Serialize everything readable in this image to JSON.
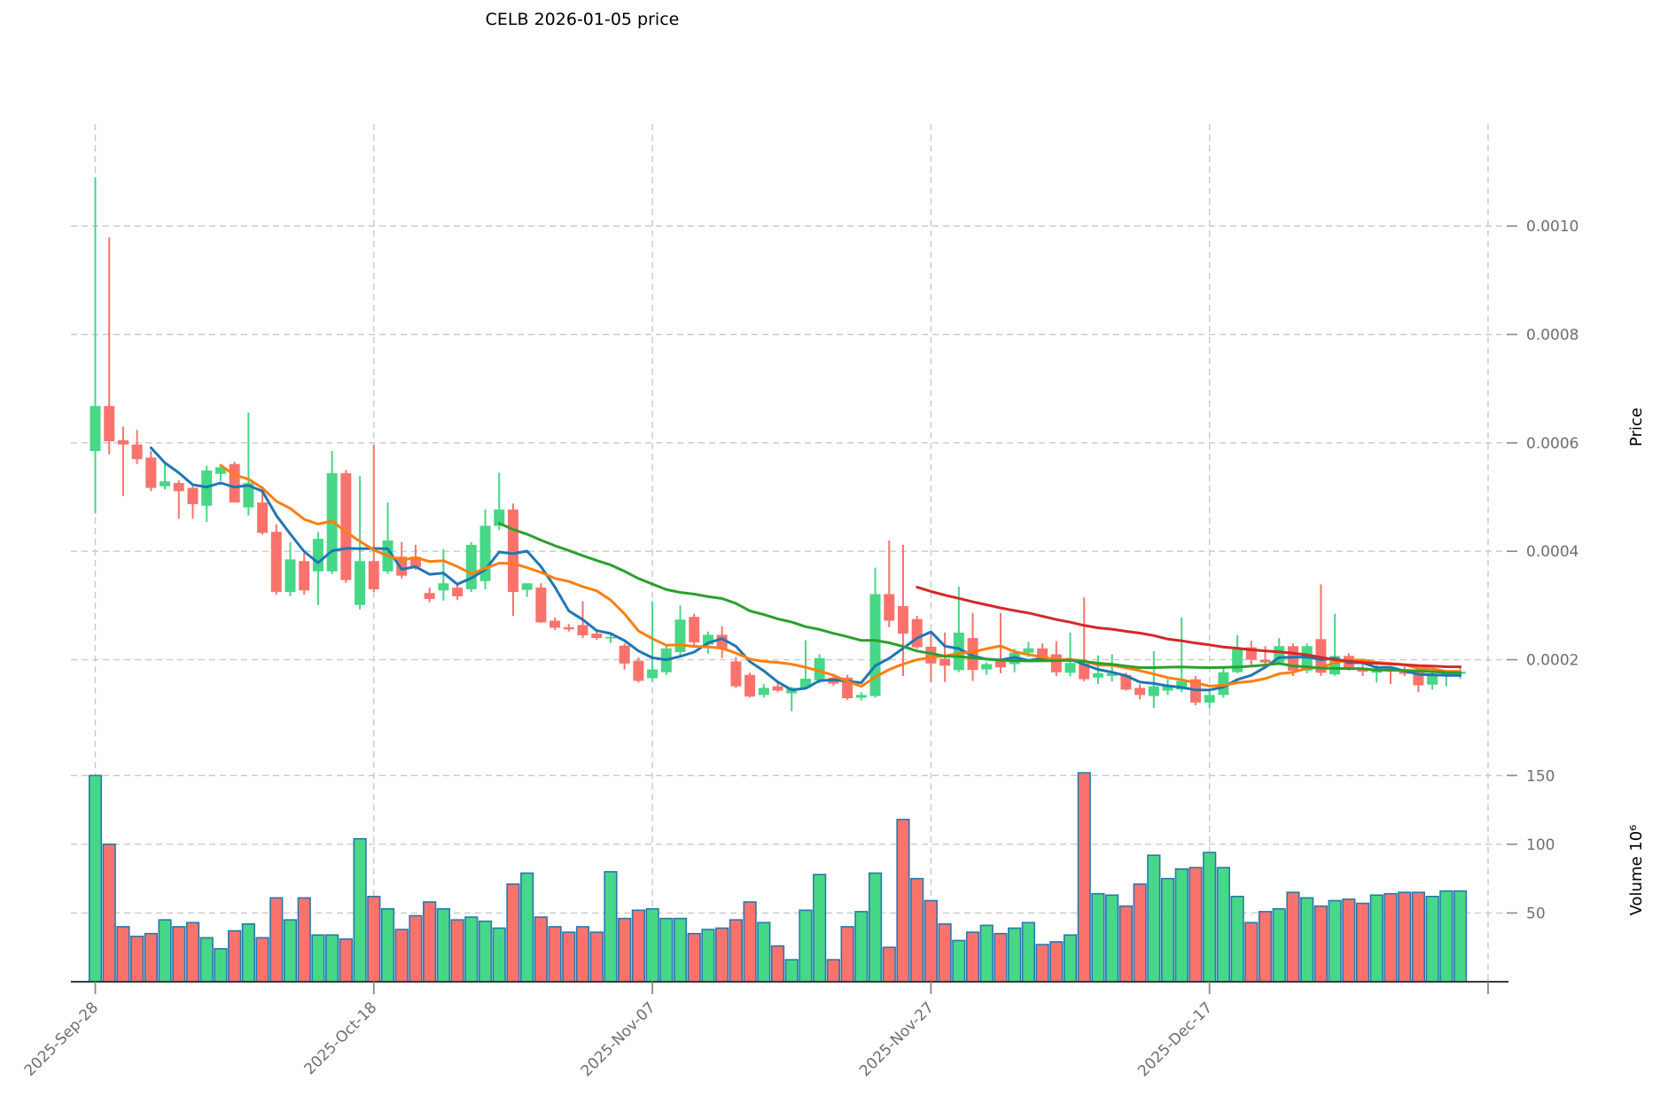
{
  "chart_data": {
    "type": "candlestick_with_volume",
    "title": "CELB  2026-01-05  price",
    "price_axis_label": "Price",
    "volume_axis_label": "Volume  10⁶",
    "legend_position": "none",
    "grid": "dashed",
    "x_ticks": [
      {
        "index": 0,
        "label": "2025-Sep-28"
      },
      {
        "index": 20,
        "label": "2025-Oct-18"
      },
      {
        "index": 40,
        "label": "2025-Nov-07"
      },
      {
        "index": 60,
        "label": "2025-Nov-27"
      },
      {
        "index": 80,
        "label": "2025-Dec-17"
      },
      {
        "index": 100,
        "label": ""
      }
    ],
    "price_ticks": [
      {
        "value": 0.0002,
        "label": "0.0002"
      },
      {
        "value": 0.0004,
        "label": "0.0004"
      },
      {
        "value": 0.0006,
        "label": "0.0006"
      },
      {
        "value": 0.0008,
        "label": "0.0008"
      },
      {
        "value": 0.001,
        "label": "0.0010"
      }
    ],
    "volume_ticks": [
      {
        "value": 50,
        "label": "50"
      },
      {
        "value": 100,
        "label": "100"
      },
      {
        "value": 150,
        "label": "150"
      }
    ],
    "price_range": [
      8e-05,
      0.00118
    ],
    "volume_range": [
      0,
      165
    ],
    "moving_averages": [
      {
        "name": "sma-5",
        "period": 5,
        "color": "#1f77b4"
      },
      {
        "name": "sma-10",
        "period": 10,
        "color": "#ff7f0e"
      },
      {
        "name": "sma-30",
        "period": 30,
        "color": "#2ca02c"
      },
      {
        "name": "sma-60",
        "period": 60,
        "color": "#d62728"
      }
    ],
    "colors": {
      "up": "#46d787",
      "down": "#f9736c",
      "volume_edge": "#2878af",
      "grid": "#c9c9c9",
      "tick_text": "#6e6e6e",
      "axis_spine": "#3a3a3a"
    },
    "ohlc": [
      [
        0.000585,
        0.00109,
        0.00047,
        0.000668
      ],
      [
        0.000668,
        0.000979,
        0.000579,
        0.000603
      ],
      [
        0.000605,
        0.00063,
        0.000502,
        0.000597
      ],
      [
        0.000597,
        0.000624,
        0.000561,
        0.00057
      ],
      [
        0.000573,
        0.000585,
        0.000511,
        0.000517
      ],
      [
        0.00052,
        0.000564,
        0.000514,
        0.000529
      ],
      [
        0.000526,
        0.000531,
        0.00046,
        0.000511
      ],
      [
        0.000517,
        0.00052,
        0.00046,
        0.000487
      ],
      [
        0.000484,
        0.000558,
        0.000454,
        0.000549
      ],
      [
        0.000543,
        0.000558,
        0.00053,
        0.000555
      ],
      [
        0.000561,
        0.000565,
        0.00049,
        0.00049
      ],
      [
        0.000481,
        0.000656,
        0.000466,
        0.000526
      ],
      [
        0.00049,
        0.00052,
        0.000431,
        0.000434
      ],
      [
        0.000436,
        0.00045,
        0.00032,
        0.000325
      ],
      [
        0.000325,
        0.000417,
        0.000317,
        0.000385
      ],
      [
        0.000382,
        0.000396,
        0.00032,
        0.000328
      ],
      [
        0.000363,
        0.000436,
        0.000301,
        0.000423
      ],
      [
        0.000363,
        0.000585,
        0.000358,
        0.000544
      ],
      [
        0.000544,
        0.00055,
        0.000342,
        0.000347
      ],
      [
        0.000301,
        0.000539,
        0.000293,
        0.000382
      ],
      [
        0.000382,
        0.000596,
        0.000325,
        0.00033
      ],
      [
        0.000363,
        0.00049,
        0.000358,
        0.00042
      ],
      [
        0.00039,
        0.000417,
        0.00035,
        0.000355
      ],
      [
        0.00039,
        0.000412,
        0.000366,
        0.000371
      ],
      [
        0.000323,
        0.000333,
        0.000306,
        0.000312
      ],
      [
        0.000328,
        0.000404,
        0.000309,
        0.000341
      ],
      [
        0.000333,
        0.00034,
        0.00031,
        0.000317
      ],
      [
        0.00033,
        0.000417,
        0.000325,
        0.000412
      ],
      [
        0.000345,
        0.000477,
        0.00033,
        0.000447
      ],
      [
        0.000447,
        0.000545,
        0.000439,
        0.000477
      ],
      [
        0.000477,
        0.000488,
        0.000281,
        0.000325
      ],
      [
        0.000329,
        0.000341,
        0.000316,
        0.000341
      ],
      [
        0.000333,
        0.000341,
        0.000268,
        0.000269
      ],
      [
        0.000272,
        0.000278,
        0.000255,
        0.000259
      ],
      [
        0.00026,
        0.000266,
        0.000252,
        0.000256
      ],
      [
        0.000264,
        0.000308,
        0.00024,
        0.000245
      ],
      [
        0.000248,
        0.000255,
        0.000237,
        0.00024
      ],
      [
        0.00024,
        0.000246,
        0.000231,
        0.000242
      ],
      [
        0.000226,
        0.00023,
        0.000182,
        0.000193
      ],
      [
        0.000198,
        0.000204,
        0.000158,
        0.000161
      ],
      [
        0.000166,
        0.000308,
        0.00016,
        0.000182
      ],
      [
        0.000177,
        0.000226,
        0.000172,
        0.000221
      ],
      [
        0.000214,
        0.0003,
        0.000208,
        0.000274
      ],
      [
        0.000279,
        0.000285,
        0.000225,
        0.000232
      ],
      [
        0.000228,
        0.000252,
        0.000211,
        0.000246
      ],
      [
        0.000246,
        0.000262,
        0.000203,
        0.000221
      ],
      [
        0.000197,
        0.000205,
        0.000148,
        0.000151
      ],
      [
        0.000172,
        0.000176,
        0.00013,
        0.000132
      ],
      [
        0.000135,
        0.000155,
        0.00013,
        0.000148
      ],
      [
        0.000151,
        0.000156,
        0.00014,
        0.000143
      ],
      [
        0.000138,
        0.00015,
        0.000105,
        0.000148
      ],
      [
        0.000148,
        0.000236,
        0.000145,
        0.000165
      ],
      [
        0.000162,
        0.00021,
        0.000157,
        0.000203
      ],
      [
        0.000167,
        0.000172,
        0.000152,
        0.000156
      ],
      [
        0.000167,
        0.000172,
        0.000126,
        0.000129
      ],
      [
        0.00013,
        0.00014,
        0.000125,
        0.000135
      ],
      [
        0.000133,
        0.00037,
        0.00013,
        0.000321
      ],
      [
        0.000321,
        0.00042,
        0.00026,
        0.000272
      ],
      [
        0.000299,
        0.000412,
        0.00017,
        0.000248
      ],
      [
        0.000275,
        0.000281,
        0.00022,
        0.000223
      ],
      [
        0.000224,
        0.00025,
        0.000159,
        0.000193
      ],
      [
        0.000202,
        0.00025,
        0.000159,
        0.000189
      ],
      [
        0.000181,
        0.000335,
        0.000177,
        0.00025
      ],
      [
        0.00024,
        0.000286,
        0.000161,
        0.000181
      ],
      [
        0.000182,
        0.000195,
        0.000172,
        0.000192
      ],
      [
        0.000202,
        0.000286,
        0.000175,
        0.000186
      ],
      [
        0.000192,
        0.00022,
        0.000177,
        0.000213
      ],
      [
        0.000213,
        0.000233,
        0.000205,
        0.000221
      ],
      [
        0.000221,
        0.00023,
        0.000196,
        0.0002
      ],
      [
        0.00021,
        0.000234,
        0.00017,
        0.000177
      ],
      [
        0.000176,
        0.00025,
        0.000169,
        0.000194
      ],
      [
        0.000193,
        0.000315,
        0.00016,
        0.000164
      ],
      [
        0.000167,
        0.000208,
        0.000155,
        0.000175
      ],
      [
        0.00017,
        0.00021,
        0.00016,
        0.000175
      ],
      [
        0.000172,
        0.000176,
        0.000143,
        0.000145
      ],
      [
        0.000148,
        0.000155,
        0.000127,
        0.000135
      ],
      [
        0.000133,
        0.000216,
        0.000111,
        0.000151
      ],
      [
        0.000143,
        0.000164,
        0.000135,
        0.000153
      ],
      [
        0.000145,
        0.000278,
        0.00014,
        0.000161
      ],
      [
        0.000164,
        0.00017,
        0.000116,
        0.000121
      ],
      [
        0.000121,
        0.000145,
        0.000111,
        0.000135
      ],
      [
        0.000135,
        0.000185,
        0.00013,
        0.000177
      ],
      [
        0.000177,
        0.000245,
        0.000175,
        0.000223
      ],
      [
        0.000223,
        0.000235,
        0.00019,
        0.0002
      ],
      [
        0.0002,
        0.000225,
        0.000185,
        0.000195
      ],
      [
        0.000195,
        0.00024,
        0.00019,
        0.000225
      ],
      [
        0.000225,
        0.00023,
        0.00017,
        0.00018
      ],
      [
        0.00018,
        0.00023,
        0.000175,
        0.000225
      ],
      [
        0.000238,
        0.000339,
        0.00017,
        0.000176
      ],
      [
        0.000173,
        0.000285,
        0.00017,
        0.000207
      ],
      [
        0.000207,
        0.000212,
        0.00018,
        0.000185
      ],
      [
        0.000185,
        0.000193,
        0.00017,
        0.000178
      ],
      [
        0.000176,
        0.00019,
        0.000158,
        0.000182
      ],
      [
        0.000182,
        0.000188,
        0.000155,
        0.000178
      ],
      [
        0.000182,
        0.000188,
        0.00017,
        0.000174
      ],
      [
        0.000177,
        0.000182,
        0.00014,
        0.000153
      ],
      [
        0.000154,
        0.00018,
        0.000145,
        0.000174
      ],
      [
        0.000172,
        0.00018,
        0.000151,
        0.000177
      ],
      [
        0.000174,
        0.000187,
        0.000165,
        0.000178
      ]
    ],
    "volume_m": [
      150,
      100,
      40,
      33,
      35,
      45,
      40,
      43,
      32,
      24,
      37,
      42,
      32,
      61,
      45,
      61,
      34,
      34,
      31,
      104,
      62,
      53,
      38,
      48,
      58,
      53,
      45,
      47,
      44,
      39,
      71,
      79,
      47,
      40,
      36,
      40,
      36,
      80,
      46,
      52,
      53,
      46,
      46,
      35,
      38,
      39,
      45,
      58,
      43,
      26,
      16,
      52,
      78,
      16,
      40,
      51,
      79,
      25,
      118,
      75,
      59,
      42,
      30,
      36,
      41,
      35,
      39,
      43,
      27,
      29,
      34,
      152,
      64,
      63,
      55,
      71,
      92,
      75,
      82,
      83,
      94,
      83,
      62,
      43,
      51,
      53,
      65,
      61,
      55,
      59,
      60,
      57,
      63,
      64,
      65,
      65,
      62,
      66,
      66
    ]
  }
}
